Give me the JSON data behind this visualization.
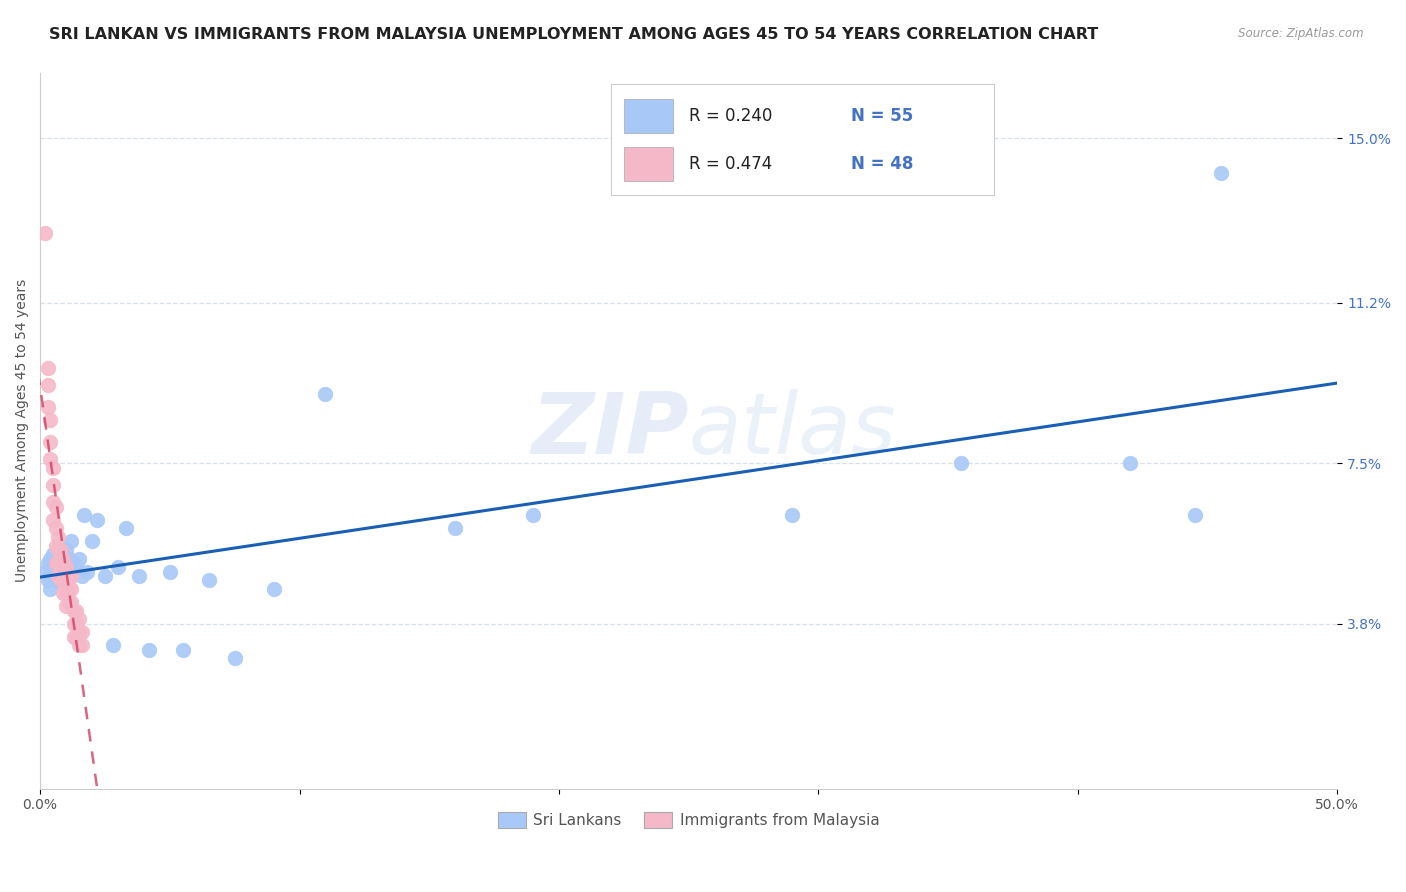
{
  "title": "SRI LANKAN VS IMMIGRANTS FROM MALAYSIA UNEMPLOYMENT AMONG AGES 45 TO 54 YEARS CORRELATION CHART",
  "source": "Source: ZipAtlas.com",
  "ylabel": "Unemployment Among Ages 45 to 54 years",
  "xlim": [
    0.0,
    0.5
  ],
  "ylim": [
    0.0,
    0.165
  ],
  "xtick_positions": [
    0.0,
    0.1,
    0.2,
    0.3,
    0.4,
    0.5
  ],
  "xticklabels": [
    "0.0%",
    "",
    "",
    "",
    "",
    "50.0%"
  ],
  "ytick_positions": [
    0.038,
    0.075,
    0.112,
    0.15
  ],
  "ytick_labels": [
    "3.8%",
    "7.5%",
    "11.2%",
    "15.0%"
  ],
  "blue_color": "#a8c8f8",
  "pink_color": "#f5b8c8",
  "trend_blue_color": "#1a5fb4",
  "trend_pink_color": "#d04060",
  "background_color": "#ffffff",
  "grid_color": "#d8e0ec",
  "legend_label1": "Sri Lankans",
  "legend_label2": "Immigrants from Malaysia",
  "watermark": "ZIPatlas",
  "title_fontsize": 11.5,
  "tick_fontsize": 10,
  "ylabel_fontsize": 10,
  "blue_R": "R = 0.240",
  "blue_N": "N = 55",
  "pink_R": "R = 0.474",
  "pink_N": "N = 48",
  "blue_scatter_x": [
    0.002,
    0.003,
    0.003,
    0.004,
    0.004,
    0.004,
    0.005,
    0.005,
    0.005,
    0.005,
    0.006,
    0.006,
    0.006,
    0.006,
    0.007,
    0.007,
    0.007,
    0.008,
    0.008,
    0.008,
    0.009,
    0.009,
    0.01,
    0.01,
    0.01,
    0.011,
    0.012,
    0.012,
    0.013,
    0.014,
    0.015,
    0.016,
    0.017,
    0.018,
    0.02,
    0.022,
    0.025,
    0.028,
    0.03,
    0.033,
    0.038,
    0.042,
    0.05,
    0.055,
    0.065,
    0.075,
    0.09,
    0.11,
    0.16,
    0.19,
    0.29,
    0.355,
    0.42,
    0.445,
    0.455
  ],
  "blue_scatter_y": [
    0.05,
    0.048,
    0.052,
    0.046,
    0.053,
    0.049,
    0.05,
    0.052,
    0.049,
    0.054,
    0.051,
    0.053,
    0.05,
    0.048,
    0.052,
    0.05,
    0.049,
    0.055,
    0.048,
    0.052,
    0.051,
    0.05,
    0.055,
    0.048,
    0.052,
    0.053,
    0.049,
    0.057,
    0.052,
    0.051,
    0.053,
    0.049,
    0.063,
    0.05,
    0.057,
    0.062,
    0.049,
    0.033,
    0.051,
    0.06,
    0.049,
    0.032,
    0.05,
    0.032,
    0.048,
    0.03,
    0.046,
    0.091,
    0.06,
    0.063,
    0.063,
    0.075,
    0.075,
    0.063,
    0.142
  ],
  "pink_scatter_x": [
    0.002,
    0.003,
    0.003,
    0.003,
    0.004,
    0.004,
    0.004,
    0.005,
    0.005,
    0.005,
    0.005,
    0.006,
    0.006,
    0.006,
    0.006,
    0.007,
    0.007,
    0.007,
    0.007,
    0.008,
    0.008,
    0.008,
    0.008,
    0.009,
    0.009,
    0.009,
    0.009,
    0.01,
    0.01,
    0.01,
    0.01,
    0.011,
    0.011,
    0.011,
    0.012,
    0.012,
    0.012,
    0.013,
    0.013,
    0.013,
    0.014,
    0.014,
    0.014,
    0.015,
    0.015,
    0.015,
    0.016,
    0.016
  ],
  "pink_scatter_y": [
    0.128,
    0.097,
    0.093,
    0.088,
    0.085,
    0.08,
    0.076,
    0.074,
    0.07,
    0.066,
    0.062,
    0.065,
    0.06,
    0.056,
    0.052,
    0.058,
    0.055,
    0.052,
    0.049,
    0.055,
    0.053,
    0.05,
    0.048,
    0.053,
    0.05,
    0.048,
    0.045,
    0.051,
    0.048,
    0.045,
    0.042,
    0.049,
    0.046,
    0.043,
    0.049,
    0.046,
    0.043,
    0.041,
    0.038,
    0.035,
    0.041,
    0.038,
    0.035,
    0.039,
    0.036,
    0.033,
    0.036,
    0.033
  ]
}
